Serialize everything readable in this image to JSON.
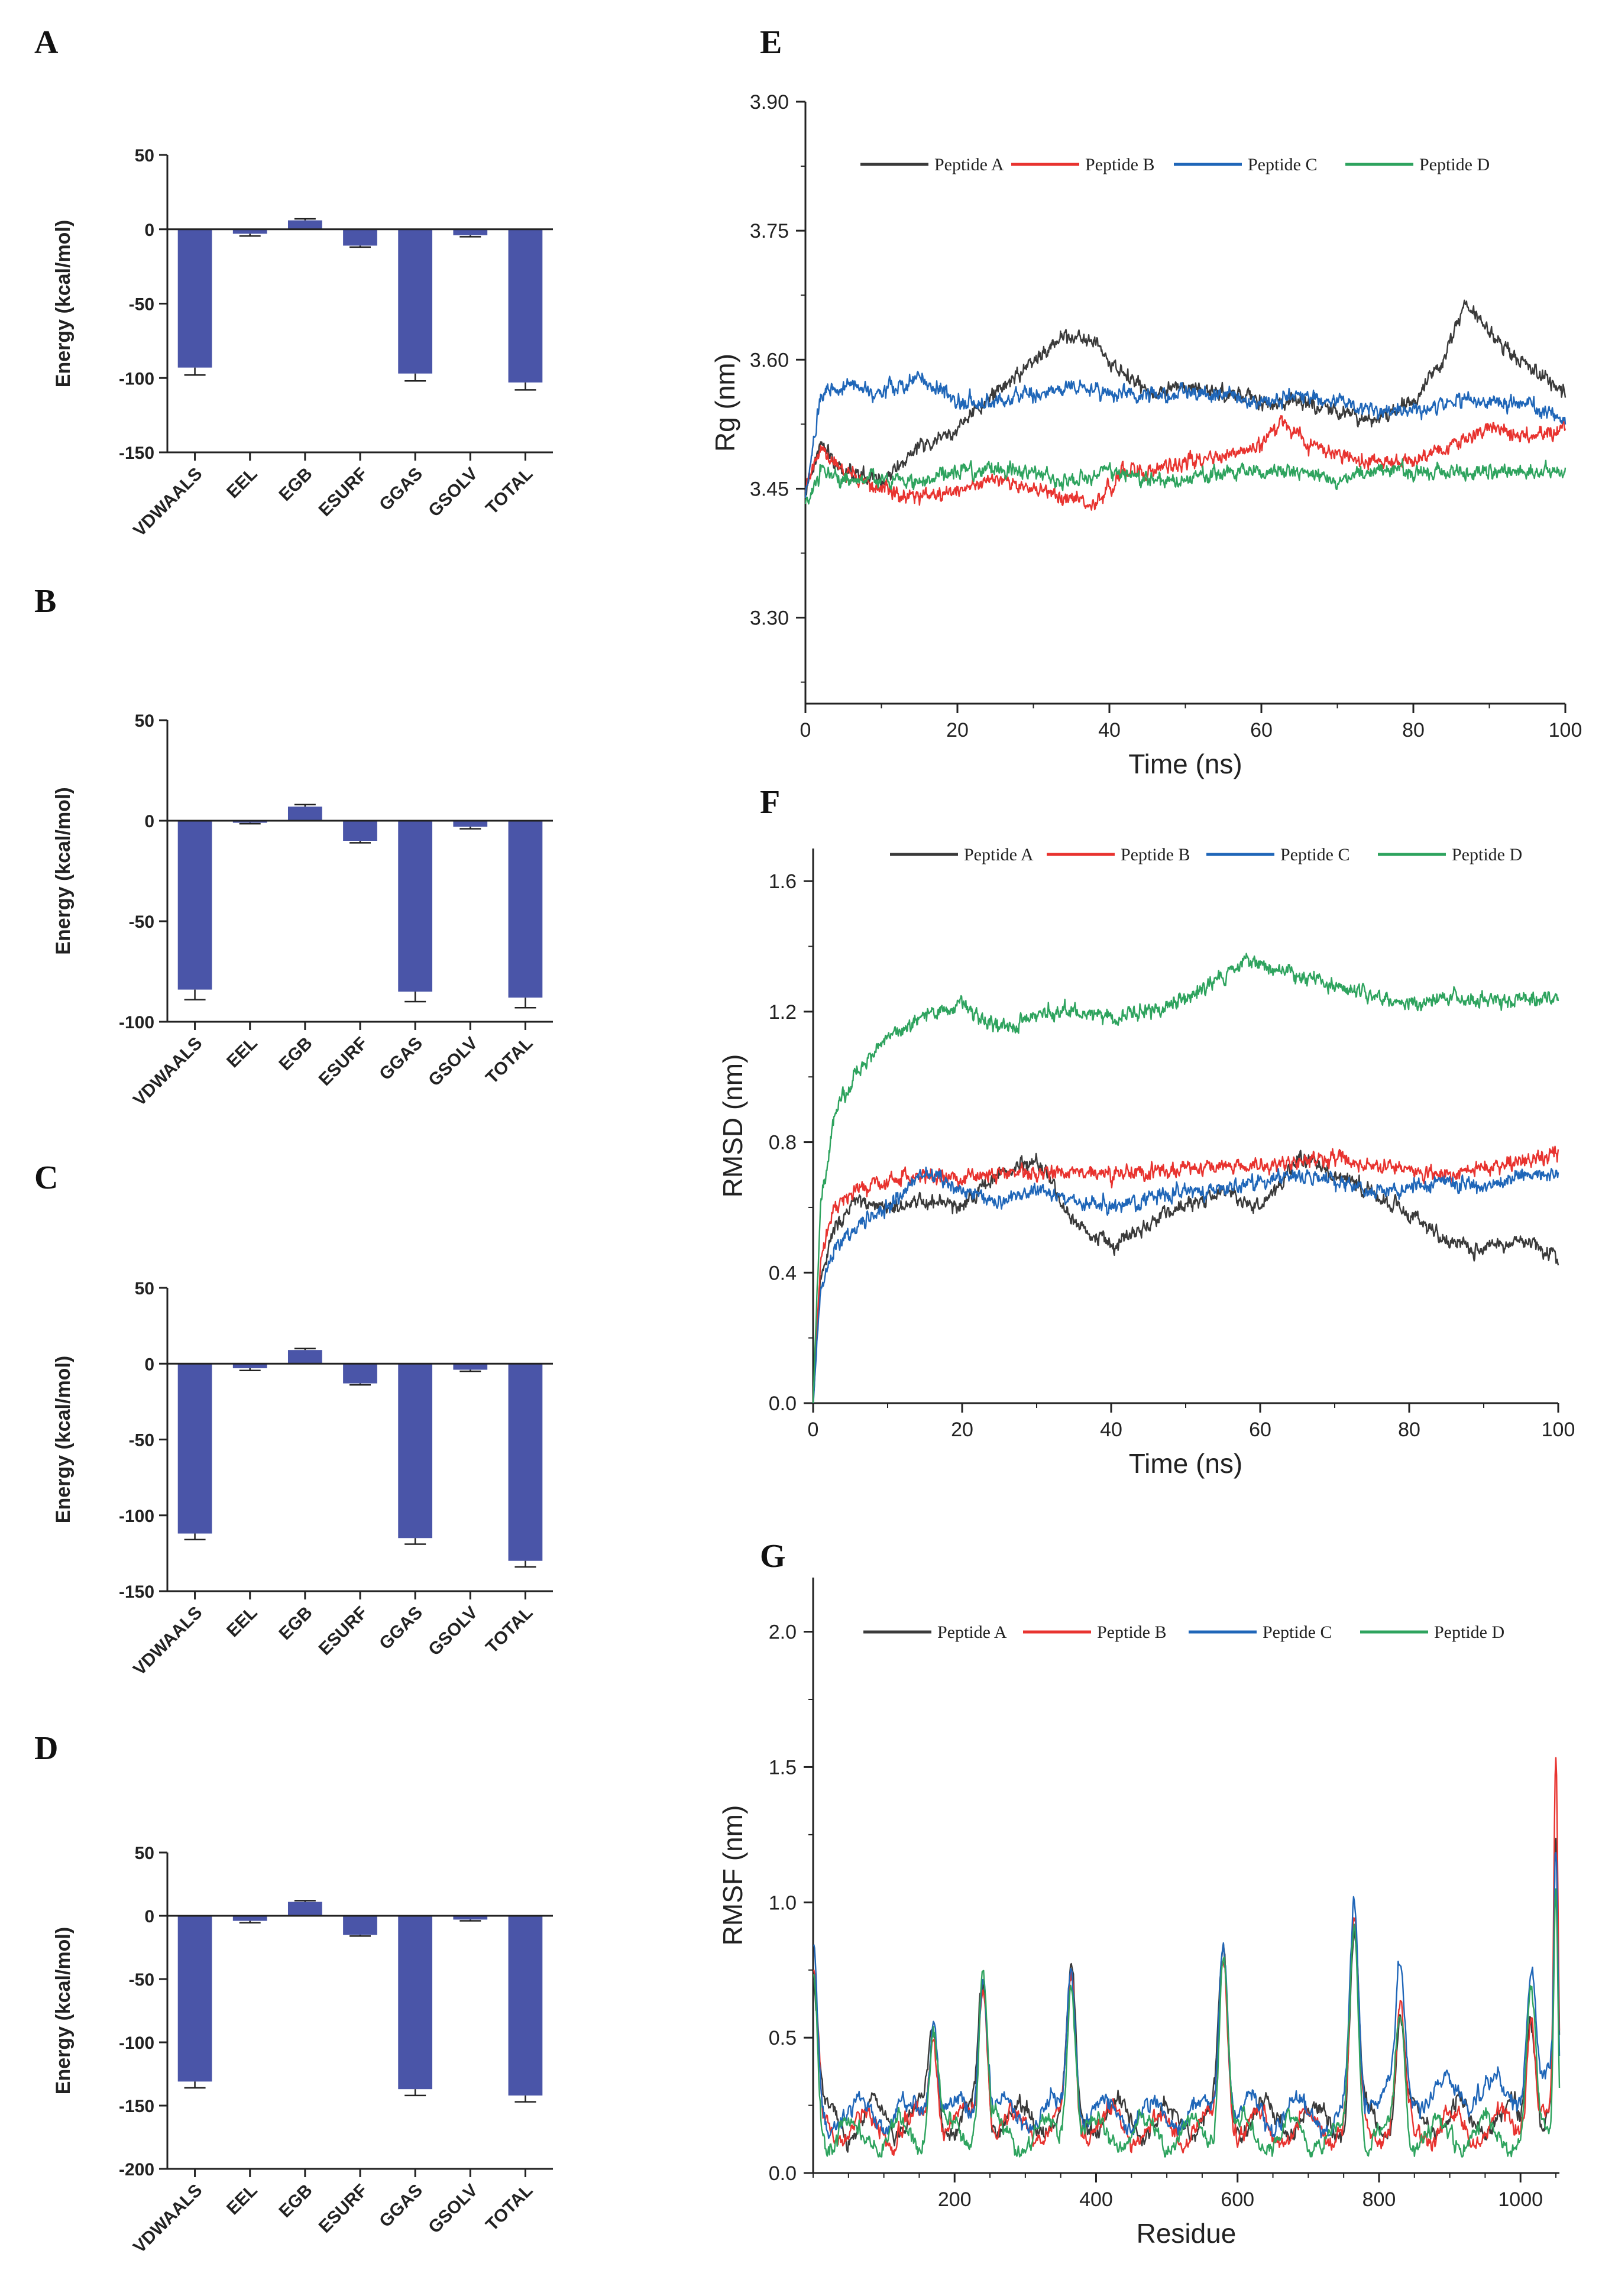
{
  "panels": {
    "A": "A",
    "B": "B",
    "C": "C",
    "D": "D",
    "E": "E",
    "F": "F",
    "G": "G"
  },
  "colors": {
    "bar": "#4a55a8",
    "axis": "#222222",
    "peptide_a": "#3a3a3a",
    "peptide_b": "#e8332f",
    "peptide_c": "#1f66b8",
    "peptide_d": "#2ea35e"
  },
  "chart_data": [
    {
      "id": "A",
      "type": "bar",
      "ylabel": "Energy (kcal/mol)",
      "categories": [
        "VDWAALS",
        "EEL",
        "EGB",
        "ESURF",
        "GGAS",
        "GSOLV",
        "TOTAL"
      ],
      "values": [
        -93,
        -3,
        6,
        -11,
        -97,
        -4,
        -103
      ],
      "errors": [
        5,
        1.5,
        1,
        1,
        5,
        1,
        5
      ],
      "yticks": [
        50,
        0,
        -50,
        -100,
        -150
      ],
      "ylim": [
        -150,
        50
      ]
    },
    {
      "id": "B",
      "type": "bar",
      "ylabel": "Energy (kcal/mol)",
      "categories": [
        "VDWAALS",
        "EEL",
        "EGB",
        "ESURF",
        "GGAS",
        "GSOLV",
        "TOTAL"
      ],
      "values": [
        -84,
        -1,
        7,
        -10,
        -85,
        -3,
        -88
      ],
      "errors": [
        5,
        0.5,
        1,
        1,
        5,
        1,
        5
      ],
      "yticks": [
        50,
        0,
        -50,
        -100
      ],
      "ylim": [
        -100,
        50
      ]
    },
    {
      "id": "C",
      "type": "bar",
      "ylabel": "Energy (kcal/mol)",
      "categories": [
        "VDWAALS",
        "EEL",
        "EGB",
        "ESURF",
        "GGAS",
        "GSOLV",
        "TOTAL"
      ],
      "values": [
        -112,
        -3,
        9,
        -13,
        -115,
        -4,
        -130
      ],
      "errors": [
        4,
        1.5,
        1,
        1,
        4,
        1,
        4
      ],
      "yticks": [
        50,
        0,
        -50,
        -100,
        -150
      ],
      "ylim": [
        -150,
        50
      ]
    },
    {
      "id": "D",
      "type": "bar",
      "ylabel": "Energy (kcal/mol)",
      "categories": [
        "VDWAALS",
        "EEL",
        "EGB",
        "ESURF",
        "GGAS",
        "GSOLV",
        "TOTAL"
      ],
      "values": [
        -131,
        -4,
        11,
        -15,
        -137,
        -3,
        -142
      ],
      "errors": [
        5,
        1.5,
        1,
        1,
        5,
        1,
        5
      ],
      "yticks": [
        50,
        0,
        -50,
        -100,
        -150,
        -200
      ],
      "ylim": [
        -200,
        50
      ]
    },
    {
      "id": "E",
      "type": "line",
      "xlabel": "Time (ns)",
      "ylabel": "Rg (nm)",
      "xlim": [
        0,
        100
      ],
      "ylim": [
        3.2,
        3.9
      ],
      "xticks": [
        0,
        20,
        40,
        60,
        80,
        100
      ],
      "yticks": [
        "3.30",
        "3.45",
        "3.60",
        "3.75",
        "3.90"
      ],
      "legend": [
        "Peptide A",
        "Peptide B",
        "Peptide C",
        "Peptide D"
      ],
      "series": [
        {
          "name": "Peptide A",
          "x": [
            0,
            2,
            5,
            10,
            15,
            20,
            25,
            30,
            34,
            38,
            42,
            46,
            50,
            55,
            60,
            65,
            70,
            75,
            80,
            84,
            87,
            90,
            94,
            97,
            100
          ],
          "y": [
            3.44,
            3.5,
            3.47,
            3.46,
            3.5,
            3.52,
            3.56,
            3.6,
            3.63,
            3.62,
            3.58,
            3.56,
            3.57,
            3.56,
            3.55,
            3.55,
            3.54,
            3.53,
            3.55,
            3.6,
            3.67,
            3.63,
            3.6,
            3.58,
            3.56
          ]
        },
        {
          "name": "Peptide B",
          "x": [
            0,
            2,
            5,
            10,
            15,
            20,
            25,
            30,
            35,
            38,
            42,
            46,
            50,
            55,
            60,
            63,
            66,
            70,
            75,
            80,
            85,
            90,
            95,
            100
          ],
          "y": [
            3.45,
            3.5,
            3.47,
            3.45,
            3.44,
            3.45,
            3.46,
            3.45,
            3.44,
            3.43,
            3.47,
            3.47,
            3.48,
            3.49,
            3.5,
            3.53,
            3.5,
            3.49,
            3.48,
            3.48,
            3.5,
            3.52,
            3.51,
            3.52
          ]
        },
        {
          "name": "Peptide C",
          "x": [
            0,
            2,
            5,
            10,
            15,
            20,
            25,
            30,
            35,
            40,
            45,
            50,
            55,
            60,
            65,
            70,
            75,
            80,
            85,
            90,
            95,
            100
          ],
          "y": [
            3.44,
            3.56,
            3.57,
            3.56,
            3.58,
            3.55,
            3.55,
            3.56,
            3.57,
            3.56,
            3.56,
            3.56,
            3.56,
            3.55,
            3.56,
            3.55,
            3.54,
            3.54,
            3.55,
            3.55,
            3.55,
            3.53
          ]
        },
        {
          "name": "Peptide D",
          "x": [
            0,
            2,
            5,
            10,
            15,
            20,
            25,
            30,
            35,
            40,
            45,
            50,
            55,
            60,
            65,
            70,
            75,
            80,
            85,
            90,
            95,
            100
          ],
          "y": [
            3.43,
            3.47,
            3.46,
            3.46,
            3.46,
            3.47,
            3.47,
            3.47,
            3.46,
            3.47,
            3.46,
            3.46,
            3.47,
            3.47,
            3.47,
            3.46,
            3.47,
            3.47,
            3.47,
            3.47,
            3.47,
            3.47
          ]
        }
      ]
    },
    {
      "id": "F",
      "type": "line",
      "xlabel": "Time (ns)",
      "ylabel": "RMSD (nm)",
      "xlim": [
        0,
        100
      ],
      "ylim": [
        0,
        1.7
      ],
      "xticks": [
        0,
        20,
        40,
        60,
        80,
        100
      ],
      "yticks": [
        "0.0",
        "0.4",
        "0.8",
        "1.2",
        "1.6"
      ],
      "legend": [
        "Peptide A",
        "Peptide B",
        "Peptide C",
        "Peptide D"
      ],
      "series": [
        {
          "name": "Peptide A",
          "x": [
            0,
            1,
            3,
            6,
            10,
            15,
            20,
            25,
            30,
            35,
            40,
            45,
            50,
            55,
            60,
            65,
            70,
            75,
            80,
            85,
            90,
            95,
            100
          ],
          "y": [
            0.0,
            0.4,
            0.55,
            0.62,
            0.6,
            0.62,
            0.6,
            0.7,
            0.75,
            0.55,
            0.48,
            0.55,
            0.6,
            0.65,
            0.6,
            0.75,
            0.7,
            0.65,
            0.58,
            0.5,
            0.47,
            0.5,
            0.45
          ]
        },
        {
          "name": "Peptide B",
          "x": [
            0,
            1,
            3,
            6,
            10,
            15,
            20,
            25,
            30,
            35,
            40,
            45,
            50,
            55,
            60,
            65,
            70,
            75,
            80,
            85,
            90,
            95,
            100
          ],
          "y": [
            0.0,
            0.45,
            0.6,
            0.66,
            0.68,
            0.7,
            0.69,
            0.7,
            0.71,
            0.7,
            0.7,
            0.71,
            0.72,
            0.72,
            0.73,
            0.74,
            0.75,
            0.73,
            0.72,
            0.7,
            0.72,
            0.74,
            0.76
          ]
        },
        {
          "name": "Peptide C",
          "x": [
            0,
            1,
            3,
            6,
            10,
            15,
            20,
            25,
            30,
            35,
            40,
            45,
            50,
            55,
            60,
            65,
            70,
            75,
            80,
            85,
            90,
            95,
            100
          ],
          "y": [
            0.0,
            0.35,
            0.48,
            0.55,
            0.6,
            0.72,
            0.65,
            0.62,
            0.65,
            0.62,
            0.6,
            0.63,
            0.65,
            0.66,
            0.68,
            0.7,
            0.68,
            0.65,
            0.66,
            0.68,
            0.66,
            0.7,
            0.7
          ]
        },
        {
          "name": "Peptide D",
          "x": [
            0,
            1,
            3,
            6,
            10,
            15,
            20,
            25,
            30,
            35,
            40,
            45,
            50,
            55,
            58,
            62,
            66,
            70,
            75,
            80,
            85,
            90,
            95,
            100
          ],
          "y": [
            0.0,
            0.6,
            0.9,
            1.02,
            1.12,
            1.2,
            1.22,
            1.15,
            1.19,
            1.2,
            1.19,
            1.2,
            1.24,
            1.3,
            1.36,
            1.34,
            1.3,
            1.28,
            1.25,
            1.22,
            1.25,
            1.23,
            1.24,
            1.24
          ]
        }
      ]
    },
    {
      "id": "G",
      "type": "line",
      "xlabel": "Residue",
      "ylabel": "RMSF (nm)",
      "xlim": [
        0,
        1055
      ],
      "ylim": [
        0,
        2.2
      ],
      "xticks": [
        200,
        400,
        600,
        800,
        1000
      ],
      "yticks": [
        "0.0",
        "0.5",
        "1.0",
        "1.5",
        "2.0"
      ],
      "legend": [
        "Peptide A",
        "Peptide B",
        "Peptide C",
        "Peptide D"
      ],
      "peaks": [
        {
          "x": 0,
          "h": 0.6
        },
        {
          "x": 170,
          "h": 0.4
        },
        {
          "x": 240,
          "h": 0.6
        },
        {
          "x": 365,
          "h": 0.6
        },
        {
          "x": 580,
          "h": 0.7
        },
        {
          "x": 765,
          "h": 0.78
        },
        {
          "x": 830,
          "h": 0.45
        },
        {
          "x": 1015,
          "h": 0.5
        },
        {
          "x": 1050,
          "h": 1.3
        }
      ]
    }
  ]
}
